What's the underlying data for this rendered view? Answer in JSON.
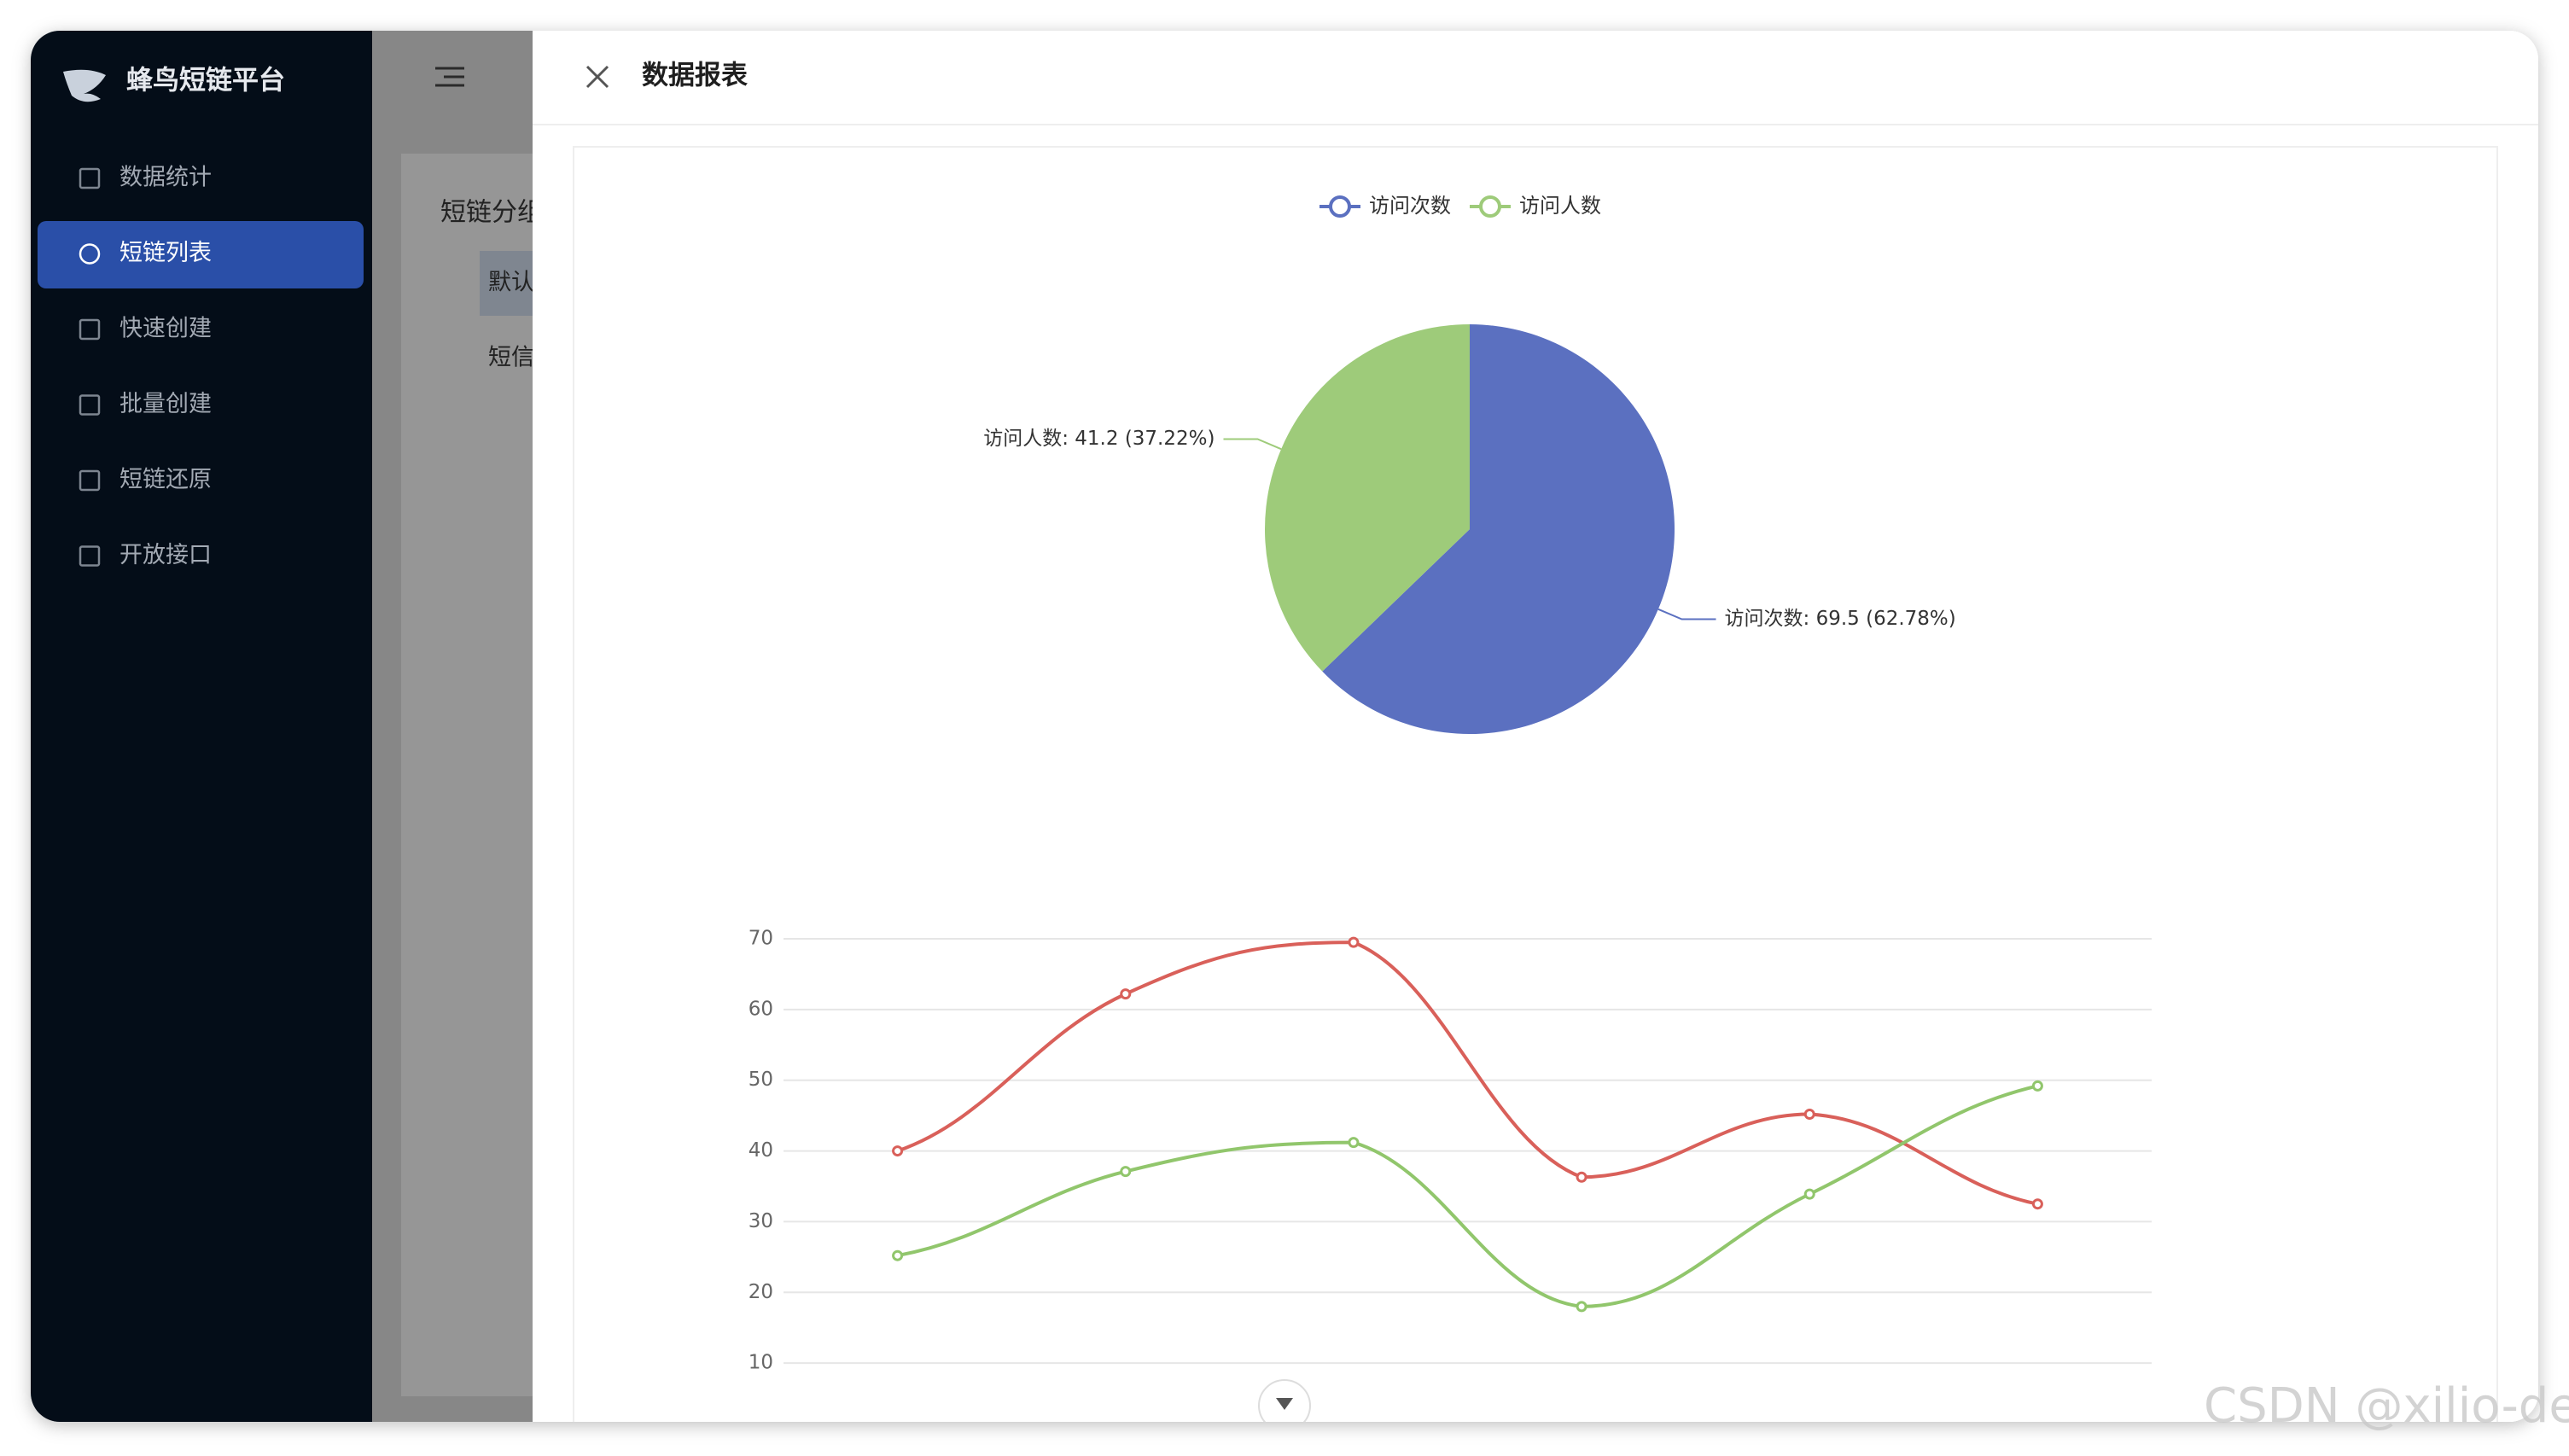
{
  "sidebar": {
    "brand": "蜂鸟短链平台",
    "menu": [
      "数据统计",
      "短链列表",
      "快速创建",
      "批量创建",
      "短链还原",
      "开放接口"
    ],
    "active": 1
  },
  "background": {
    "section": "短链分组",
    "items": [
      "默认",
      "短信"
    ]
  },
  "drawer": {
    "title": "数据报表"
  },
  "watermark": "CSDN @xilio-dev",
  "chart_data": [
    {
      "type": "pie",
      "categories": [
        "访问次数",
        "访问人数"
      ],
      "values": [
        69.5,
        41.2
      ],
      "value_labels": [
        "访问次数: 69.5 (62.78%)",
        "访问人数: 41.2 (37.22%)"
      ],
      "colors": [
        "#5b70c0",
        "#9ecb7a"
      ],
      "legend": "top"
    },
    {
      "type": "line",
      "categories": [
        null,
        null,
        null,
        null,
        null,
        null
      ],
      "series": [
        {
          "color": "#d9605a",
          "values": [
            40,
            62.2,
            69.5,
            36.3,
            45.2,
            32.5
          ]
        },
        {
          "color": "#91c66c",
          "values": [
            25.2,
            37.1,
            41.2,
            18,
            33.9,
            49.2
          ]
        }
      ],
      "ylim": [
        0,
        70
      ],
      "yticks": [
        10,
        20,
        30,
        40,
        50,
        60,
        70
      ],
      "grid": true
    }
  ]
}
